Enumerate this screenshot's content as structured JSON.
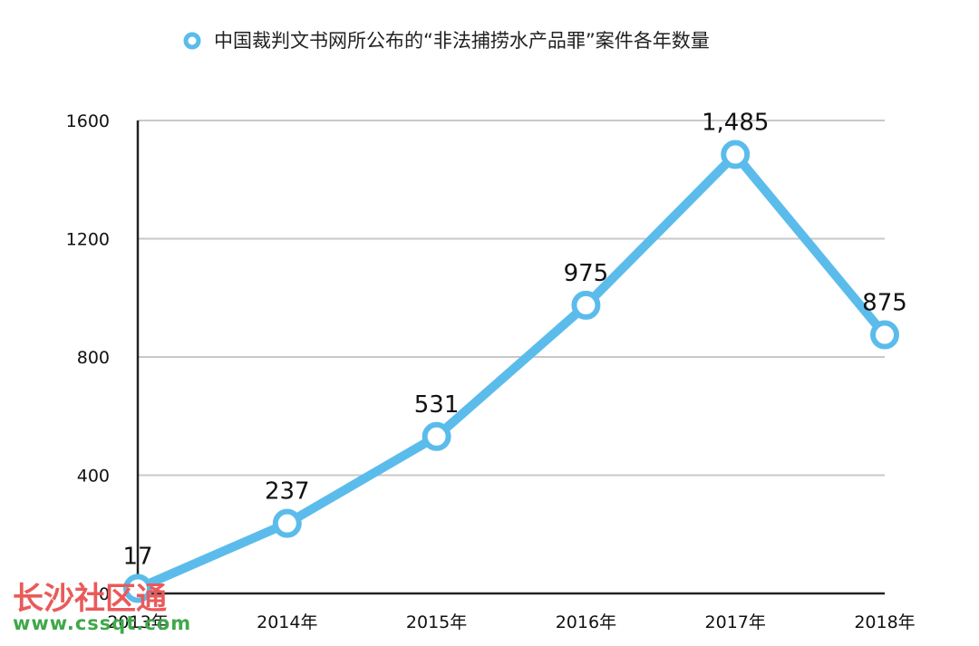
{
  "chart_data": {
    "type": "line",
    "title": "中国裁判文书网所公布的“非法捕捞水产品罪”案件各年数量",
    "categories": [
      "2013年",
      "2014年",
      "2015年",
      "2016年",
      "2017年",
      "2018年"
    ],
    "series": [
      {
        "name": "中国裁判文书网所公布的“非法捕捞水产品罪”案件各年数量",
        "values": [
          17,
          237,
          531,
          975,
          1485,
          875
        ],
        "labels": [
          "17",
          "237",
          "531",
          "975",
          "1,485",
          "875"
        ]
      }
    ],
    "ylim": [
      0,
      1600
    ],
    "yticks": [
      0,
      400,
      800,
      1200,
      1600
    ],
    "grid": true,
    "legend_position": "top",
    "colors": {
      "line": "#5bbcec",
      "grid": "#c8c8c8",
      "axis": "#222222"
    }
  },
  "watermark": {
    "text": "长沙社区通",
    "url": "www.cssqt.com"
  }
}
